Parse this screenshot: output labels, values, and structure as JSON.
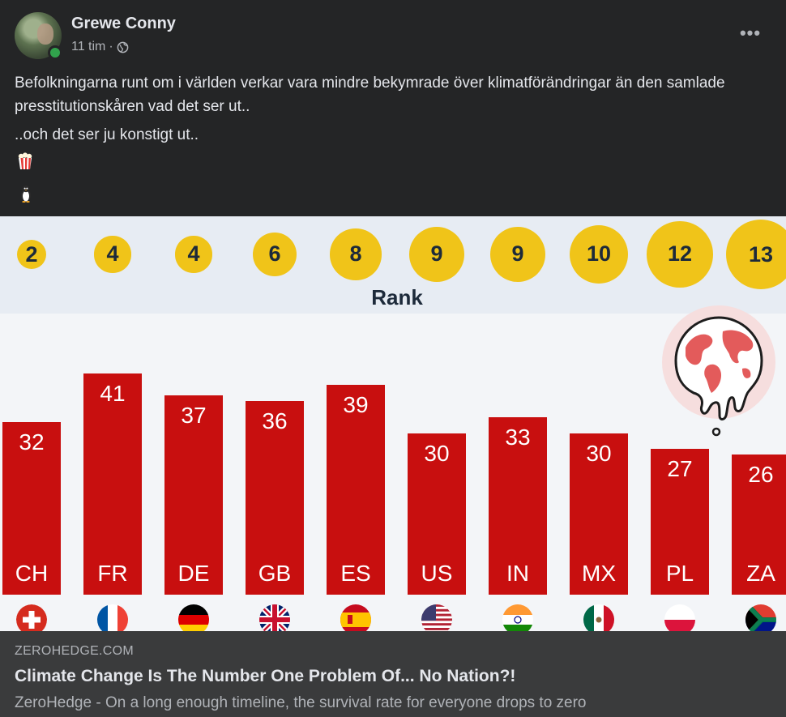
{
  "post": {
    "author": "Grewe Conny",
    "time": "11 tim",
    "separator": "·",
    "privacy_icon": "globe-icon",
    "more_label": "•••",
    "paragraph1": "Befolkningarna runt om i världen verkar vara mindre bekymrade över klimatförändringar än den samlade presstitutionskåren vad det ser ut..",
    "paragraph2": "..och det ser ju konstigt ut..",
    "emoji1": "popcorn-icon",
    "emoji2": "penguin-icon"
  },
  "chart_data": {
    "type": "bar",
    "rank_label": "Rank",
    "categories": [
      "CH",
      "FR",
      "DE",
      "GB",
      "ES",
      "US",
      "IN",
      "MX",
      "PL",
      "ZA"
    ],
    "ranks": [
      "2",
      "4",
      "4",
      "6",
      "8",
      "9",
      "9",
      "10",
      "12",
      "13"
    ],
    "values": [
      32,
      41,
      37,
      36,
      39,
      30,
      33,
      30,
      27,
      26
    ],
    "value_labels": [
      "32",
      "41",
      "37",
      "36",
      "39",
      "30",
      "33",
      "30",
      "27",
      "26"
    ],
    "flags": [
      "switzerland-flag-icon",
      "france-flag-icon",
      "germany-flag-icon",
      "uk-flag-icon",
      "spain-flag-icon",
      "usa-flag-icon",
      "india-flag-icon",
      "mexico-flag-icon",
      "poland-flag-icon",
      "south-africa-flag-icon"
    ],
    "bar_color": "#c80f0f",
    "rank_color": "#f0c419",
    "decoration": "melting-globe-icon"
  },
  "link": {
    "domain": "ZEROHEDGE.COM",
    "title": "Climate Change Is The Number One Problem Of... No Nation?!",
    "description": "ZeroHedge - On a long enough timeline, the survival rate for everyone drops to zero"
  }
}
